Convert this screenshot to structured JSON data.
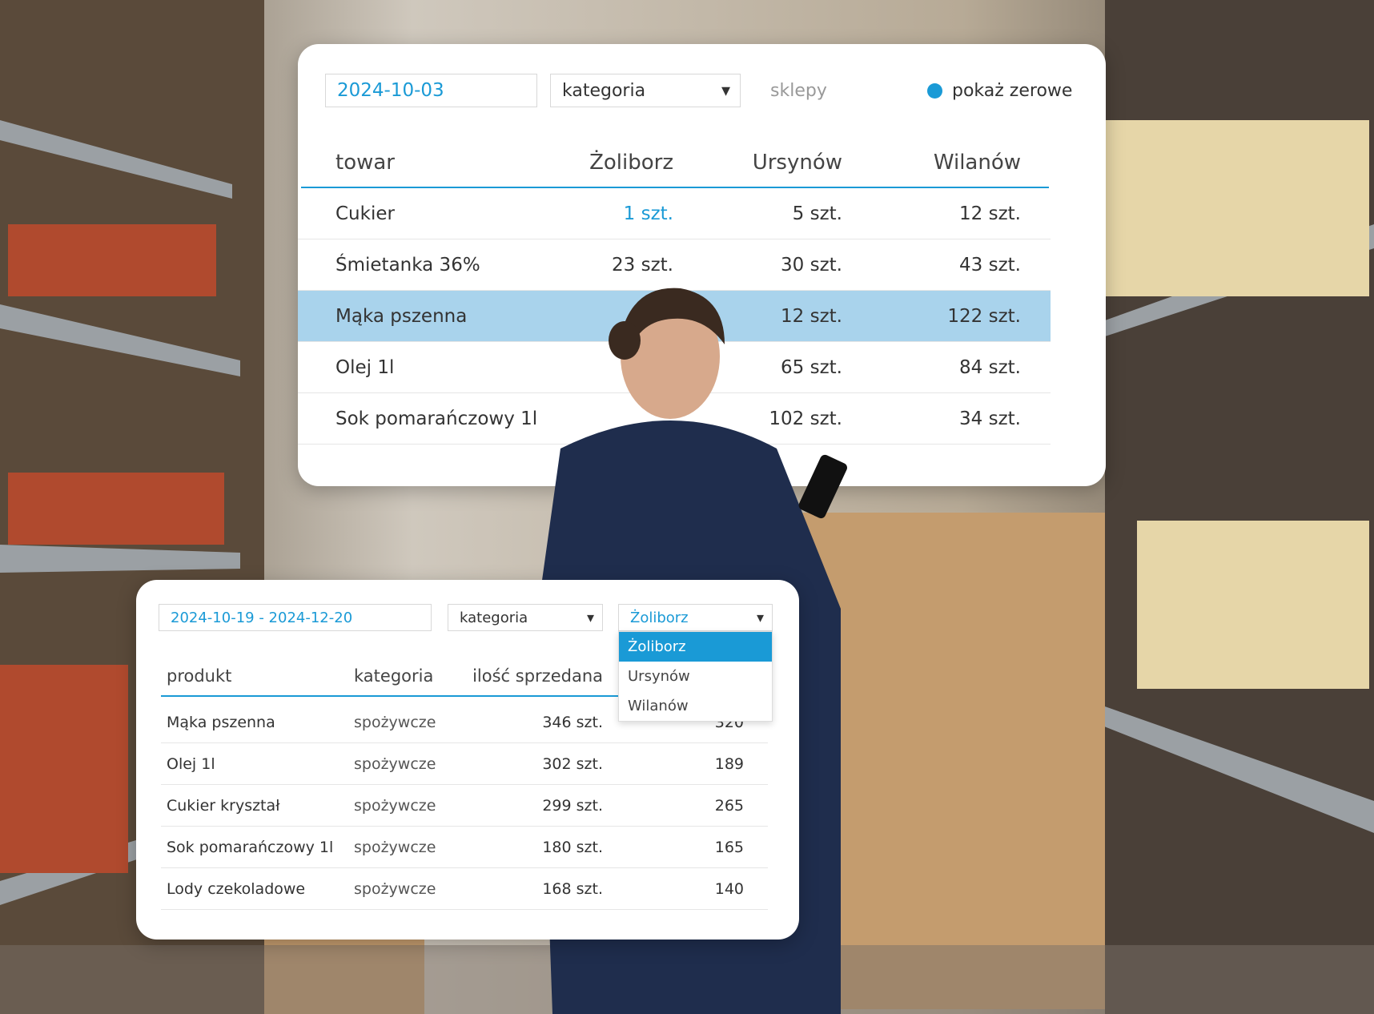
{
  "stock_panel": {
    "date": "2024-10-03",
    "category_select": "kategoria",
    "stores_label": "sklepy",
    "toggle_label": "pokaż zerowe",
    "headers": [
      "towar",
      "Żoliborz",
      "Ursynów",
      "Wilanów"
    ],
    "rows": [
      [
        "Cukier",
        "1 szt.",
        "5 szt.",
        "12 szt."
      ],
      [
        "Śmietanka 36%",
        "23 szt.",
        "30 szt.",
        "43 szt."
      ],
      [
        "Mąka pszenna",
        null,
        "12 szt.",
        "122 szt."
      ],
      [
        "Olej 1l",
        null,
        "65 szt.",
        "84 szt."
      ],
      [
        "Sok pomarańczowy 1l",
        null,
        "102 szt.",
        "34 szt."
      ]
    ]
  },
  "sales_panel": {
    "date_range": "2024-10-19 - 2024-12-20",
    "category_select": "kategoria",
    "store_select": "Żoliborz",
    "store_options": [
      "Żoliborz",
      "Ursynów",
      "Wilanów"
    ],
    "headers": [
      "produkt",
      "kategoria",
      "ilość sprzedana"
    ],
    "rows": [
      [
        "Mąka pszenna",
        "spożywcze",
        "346 szt.",
        "320"
      ],
      [
        "Olej 1l",
        "spożywcze",
        "302 szt.",
        "189"
      ],
      [
        "Cukier kryształ",
        "spożywcze",
        "299 szt.",
        "265"
      ],
      [
        "Sok pomarańczowy 1l",
        "spożywcze",
        "180 szt.",
        "165"
      ],
      [
        "Lody czekoladowe",
        "spożywcze",
        "168 szt.",
        "140"
      ]
    ]
  }
}
